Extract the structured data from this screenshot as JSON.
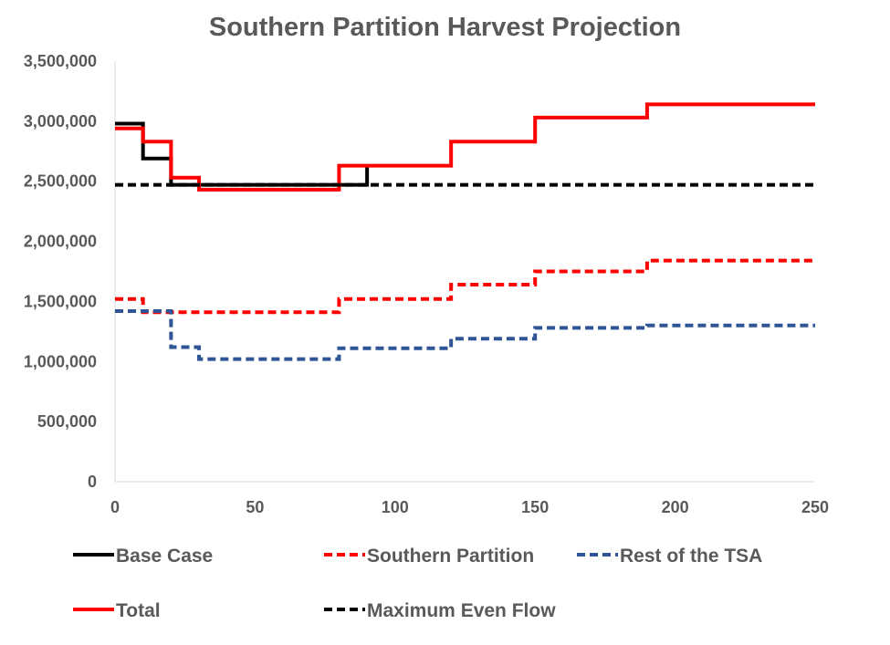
{
  "chart_data": {
    "type": "line",
    "title": "Southern Partition Harvest Projection",
    "xlabel": "",
    "ylabel": "",
    "xlim": [
      0,
      250
    ],
    "ylim": [
      0,
      3500000
    ],
    "x_ticks": [
      0,
      50,
      100,
      150,
      200,
      250
    ],
    "x_tick_labels": [
      "0",
      "50",
      "100",
      "150",
      "200",
      "250"
    ],
    "y_ticks": [
      0,
      500000,
      1000000,
      1500000,
      2000000,
      2500000,
      3000000,
      3500000
    ],
    "y_tick_labels": [
      "0",
      "500,000",
      "1,000,000",
      "1,500,000",
      "2,000,000",
      "2,500,000",
      "3,000,000",
      "3,500,000"
    ],
    "grid": false,
    "legend_position": "bottom",
    "step": true,
    "series": [
      {
        "name": "Base Case",
        "color": "#000000",
        "style": "solid",
        "x": [
          0,
          10,
          20,
          90
        ],
        "y": [
          2980000,
          2690000,
          2470000,
          2620000
        ],
        "x_end": 90
      },
      {
        "name": "Southern Partition",
        "color": "#ff0000",
        "style": "dashed",
        "x": [
          0,
          10,
          80,
          120,
          150,
          190
        ],
        "y": [
          1520000,
          1410000,
          1520000,
          1640000,
          1750000,
          1840000
        ],
        "x_end": 250
      },
      {
        "name": "Rest of the TSA",
        "color": "#2f5597",
        "style": "dashed",
        "x": [
          0,
          20,
          30,
          80,
          120,
          150,
          190
        ],
        "y": [
          1420000,
          1120000,
          1020000,
          1110000,
          1190000,
          1280000,
          1300000
        ],
        "x_end": 250
      },
      {
        "name": "Total",
        "color": "#ff0000",
        "style": "solid",
        "x": [
          0,
          10,
          20,
          30,
          80,
          120,
          150,
          190
        ],
        "y": [
          2940000,
          2830000,
          2530000,
          2430000,
          2630000,
          2830000,
          3030000,
          3140000
        ],
        "x_end": 250
      },
      {
        "name": "Maximum Even Flow",
        "color": "#000000",
        "style": "dashed",
        "x": [
          0
        ],
        "y": [
          2470000
        ],
        "x_end": 250
      }
    ]
  }
}
